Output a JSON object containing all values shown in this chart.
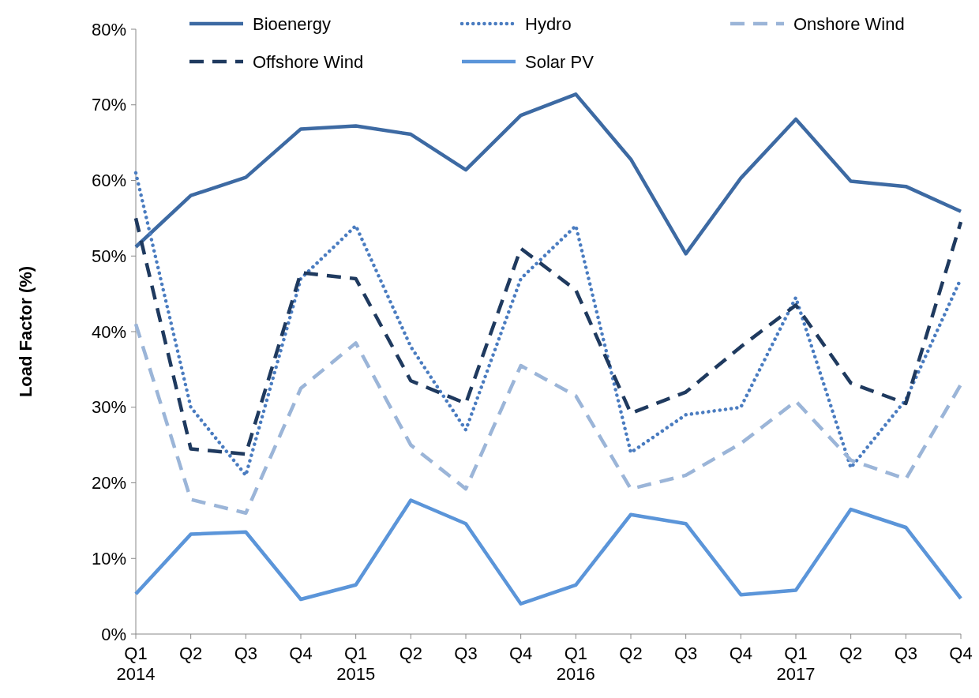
{
  "chart_data": {
    "type": "line",
    "ylabel": "Load Factor (%)",
    "categories": [
      "Q1\n2014",
      "Q2",
      "Q3",
      "Q4",
      "Q1\n2015",
      "Q2",
      "Q3",
      "Q4",
      "Q1\n2016",
      "Q2",
      "Q3",
      "Q4",
      "Q1\n2017",
      "Q2",
      "Q3",
      "Q4"
    ],
    "ylim": [
      0,
      80
    ],
    "yticks": [
      {
        "value": 0,
        "label": "0%"
      },
      {
        "value": 10,
        "label": "10%"
      },
      {
        "value": 20,
        "label": "20%"
      },
      {
        "value": 30,
        "label": "30%"
      },
      {
        "value": 40,
        "label": "40%"
      },
      {
        "value": 50,
        "label": "50%"
      },
      {
        "value": 60,
        "label": "60%"
      },
      {
        "value": 70,
        "label": "70%"
      },
      {
        "value": 80,
        "label": "80%"
      }
    ],
    "grid": false,
    "legend": "top",
    "marker": "none",
    "series": [
      {
        "name": "Bioenergy",
        "color": "#3d6aa3",
        "line_style": "solid",
        "values": [
          51.2,
          58,
          60.4,
          66.8,
          67.2,
          66.1,
          61.4,
          68.6,
          71.4,
          62.8,
          50.3,
          60.3,
          68.1,
          59.9,
          59.2,
          55.9
        ]
      },
      {
        "name": "Hydro",
        "color": "#4a7cc0",
        "line_style": "dotted",
        "values": [
          61,
          30,
          21,
          47,
          54,
          38,
          27,
          47,
          54,
          24,
          29,
          30,
          44.5,
          22,
          31,
          47
        ]
      },
      {
        "name": "Onshore Wind",
        "color": "#9bb5d8",
        "line_style": "dashed",
        "values": [
          41,
          17.8,
          16,
          32.5,
          38.5,
          25,
          19.2,
          35.5,
          31.5,
          19.2,
          21,
          25.2,
          30.8,
          23,
          20.5,
          33
        ]
      },
      {
        "name": "Offshore Wind",
        "color": "#1f3a5f",
        "line_style": "dashed",
        "values": [
          55,
          24.5,
          23.8,
          47.8,
          47,
          33.5,
          30.5,
          51,
          45.5,
          29.2,
          32,
          38,
          43.5,
          33.2,
          30.5,
          54.5
        ]
      },
      {
        "name": "Solar PV",
        "color": "#5b95d9",
        "line_style": "solid",
        "values": [
          5.3,
          13.2,
          13.5,
          4.6,
          6.5,
          17.7,
          14.6,
          4,
          6.5,
          15.8,
          14.6,
          5.2,
          5.8,
          16.5,
          14.1,
          4.7
        ]
      }
    ]
  }
}
